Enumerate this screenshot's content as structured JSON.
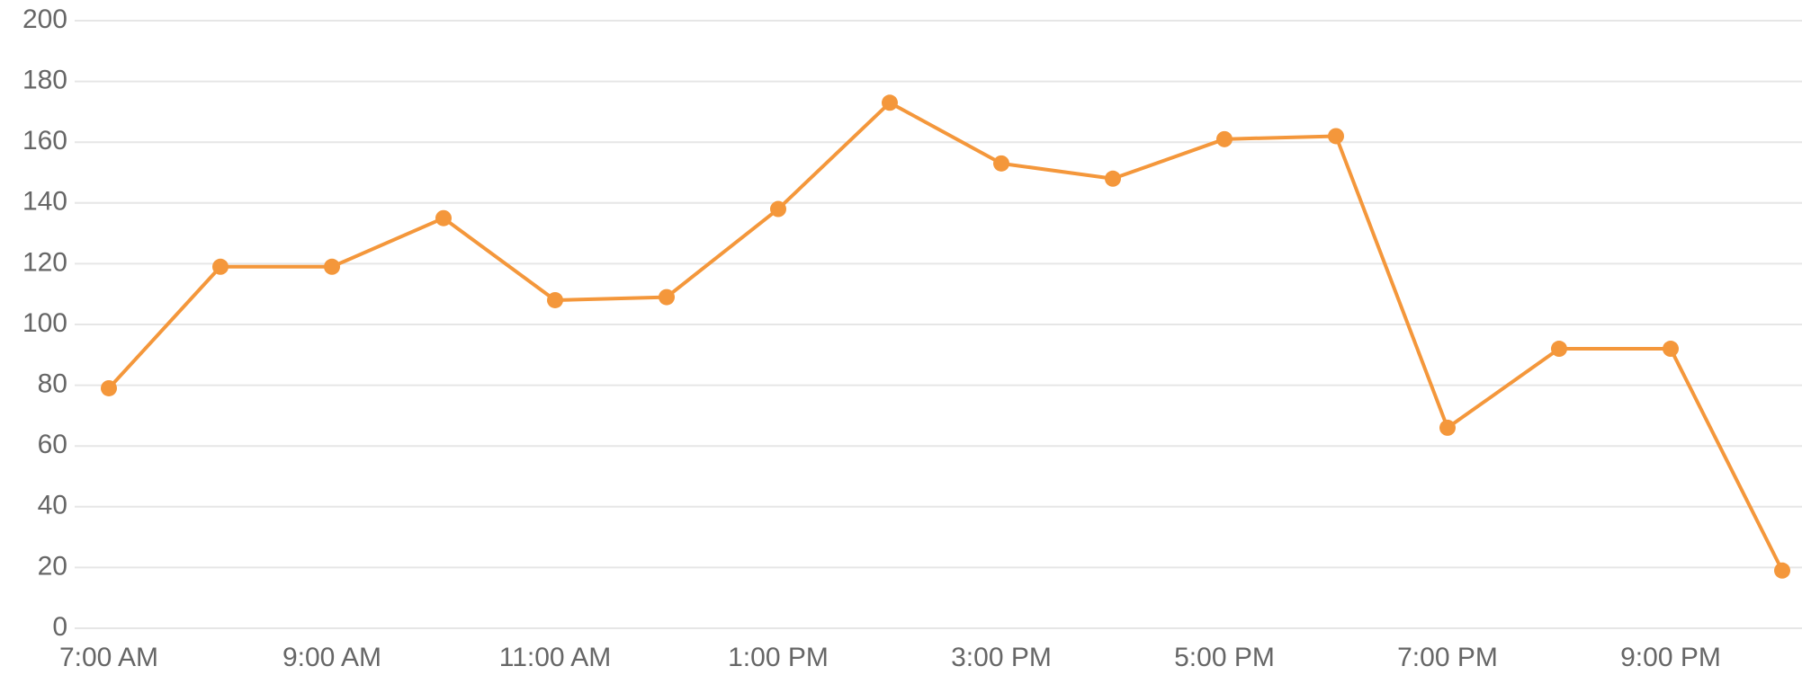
{
  "chart_data": {
    "type": "line",
    "categories": [
      "7:00 AM",
      null,
      "9:00 AM",
      null,
      "11:00 AM",
      null,
      "1:00 PM",
      null,
      "3:00 PM",
      null,
      "5:00 PM",
      null,
      "7:00 PM",
      null,
      "9:00 PM",
      null
    ],
    "series": [
      {
        "color": "#f4973b",
        "values": [
          79,
          119,
          119,
          135,
          108,
          109,
          138,
          173,
          153,
          148,
          161,
          162,
          66,
          92,
          92,
          19
        ]
      }
    ],
    "ylim": [
      0,
      200
    ],
    "yticks": [
      0,
      20,
      40,
      60,
      80,
      100,
      120,
      140,
      160,
      180,
      200
    ],
    "grid": true
  }
}
